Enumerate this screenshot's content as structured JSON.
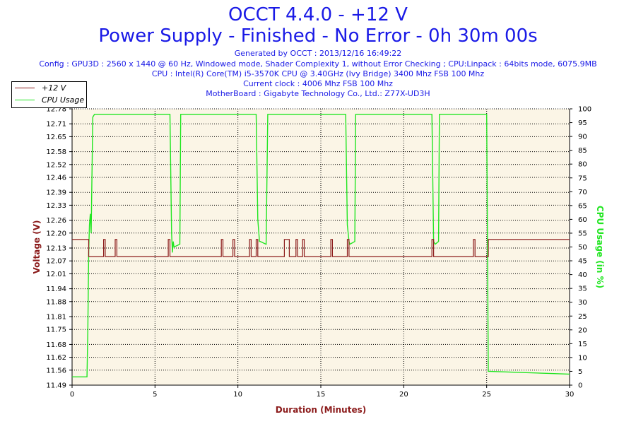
{
  "header": {
    "title_line1": "OCCT 4.4.0 - +12 V",
    "title_line2": "Power Supply - Finished - No Error - 0h 30m 00s",
    "info_lines": [
      "Generated by OCCT : 2013/12/16 16:49:22",
      "Config : GPU3D : 2560 x 1440 @ 60 Hz, Windowed mode, Shader Complexity 1, without Error Checking ; CPU:Linpack : 64bits mode, 6075.9MB",
      "CPU : Intel(R) Core(TM) i5-3570K CPU @ 3.40GHz (Ivy Bridge) 3400 Mhz FSB 100 Mhz",
      "Current clock : 4006 Mhz FSB 100 Mhz",
      "MotherBoard : Gigabyte Technology Co., Ltd.: Z77X-UD3H"
    ]
  },
  "colors": {
    "voltage": "#8b1a1a",
    "cpu": "#22e622",
    "plot_bg": "#fbf5e6",
    "grid": "#000000"
  },
  "chart_data": {
    "type": "line",
    "xlabel": "Duration (Minutes)",
    "ylabel_left": "Voltage (V)",
    "ylabel_right": "CPU Usage (in %)",
    "xlim": [
      0,
      30
    ],
    "x_ticks": [
      0,
      5,
      10,
      15,
      20,
      25,
      30
    ],
    "ylim_left": [
      11.49,
      12.78
    ],
    "y_ticks_left": [
      "11.49",
      "11.56",
      "11.62",
      "11.68",
      "11.75",
      "11.81",
      "11.88",
      "11.94",
      "12.01",
      "12.07",
      "12.13",
      "12.20",
      "12.26",
      "12.33",
      "12.39",
      "12.46",
      "12.52",
      "12.58",
      "12.65",
      "12.71",
      "12.78"
    ],
    "ylim_right": [
      0,
      100
    ],
    "y_ticks_right": [
      0,
      5,
      10,
      15,
      20,
      25,
      30,
      35,
      40,
      45,
      50,
      55,
      60,
      65,
      70,
      75,
      80,
      85,
      90,
      95,
      100
    ],
    "grid": "dotted",
    "legend_position": "top-left",
    "series": [
      {
        "name": "+12 V",
        "axis": "left",
        "x": [
          0,
          1.0,
          1.0,
          1.9,
          1.9,
          2.0,
          2.0,
          2.6,
          2.6,
          2.7,
          2.7,
          5.8,
          5.8,
          5.9,
          5.9,
          9.0,
          9.0,
          9.1,
          9.1,
          9.7,
          9.7,
          9.8,
          9.8,
          10.7,
          10.7,
          10.8,
          10.8,
          11.1,
          11.1,
          11.2,
          11.2,
          12.8,
          12.8,
          13.1,
          13.1,
          13.5,
          13.5,
          13.6,
          13.6,
          13.9,
          13.9,
          14.0,
          14.0,
          15.6,
          15.6,
          15.7,
          15.7,
          16.6,
          16.6,
          16.7,
          16.7,
          21.7,
          21.7,
          21.8,
          21.8,
          24.2,
          24.2,
          24.3,
          24.3,
          25.1,
          25.1,
          30
        ],
        "y": [
          12.17,
          12.17,
          12.09,
          12.09,
          12.17,
          12.17,
          12.09,
          12.09,
          12.17,
          12.17,
          12.09,
          12.09,
          12.17,
          12.17,
          12.09,
          12.09,
          12.17,
          12.17,
          12.09,
          12.09,
          12.17,
          12.17,
          12.09,
          12.09,
          12.17,
          12.17,
          12.09,
          12.09,
          12.17,
          12.17,
          12.09,
          12.09,
          12.17,
          12.17,
          12.09,
          12.09,
          12.17,
          12.17,
          12.09,
          12.09,
          12.17,
          12.17,
          12.09,
          12.09,
          12.17,
          12.17,
          12.09,
          12.09,
          12.17,
          12.17,
          12.09,
          12.09,
          12.17,
          12.17,
          12.09,
          12.09,
          12.17,
          12.17,
          12.09,
          12.09,
          12.17,
          12.17
        ]
      },
      {
        "name": "CPU Usage",
        "axis": "right",
        "x": [
          0,
          0.9,
          0.95,
          1.0,
          1.05,
          1.1,
          1.15,
          1.25,
          1.35,
          5.9,
          6.0,
          6.05,
          6.1,
          6.15,
          6.5,
          6.55,
          11.1,
          11.2,
          11.3,
          11.35,
          11.7,
          11.8,
          16.5,
          16.6,
          16.7,
          16.75,
          17.05,
          17.1,
          21.7,
          21.8,
          21.9,
          22.1,
          22.15,
          25.0,
          25.1,
          30
        ],
        "y": [
          3,
          3,
          20,
          48,
          58,
          62,
          55,
          97,
          98,
          98,
          55,
          48,
          52,
          50,
          51,
          98,
          98,
          60,
          52,
          52,
          51,
          98,
          98,
          58,
          52,
          51,
          52,
          98,
          98,
          52,
          51,
          52,
          98,
          98,
          5,
          4
        ]
      }
    ]
  }
}
